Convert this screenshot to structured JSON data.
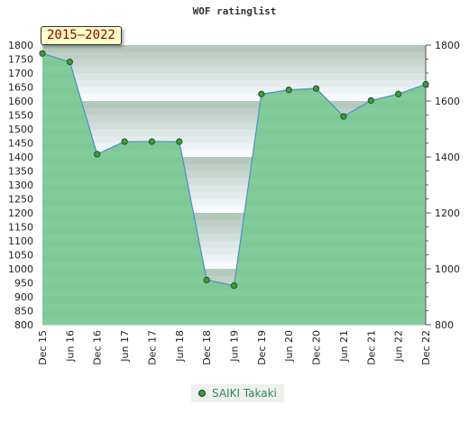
{
  "title": "WOF ratinglist",
  "range_badge": "2015–2022",
  "legend": {
    "label": "SAIKI Takaki"
  },
  "colors": {
    "line": "#4a90c8",
    "fill": "#6cc28a",
    "marker": "#3a9a3a",
    "band_dark": "#8fd3a5",
    "band_light": "#f4faf5"
  },
  "chart_data": {
    "type": "area",
    "title": "WOF ratinglist",
    "x": [
      "Dec 15",
      "Jun 16",
      "Dec 16",
      "Jun 17",
      "Dec 17",
      "Jun 18",
      "Dec 18",
      "Jun 19",
      "Dec 19",
      "Jun 20",
      "Dec 20",
      "Jun 21",
      "Dec 21",
      "Jun 22",
      "Dec 22"
    ],
    "series": [
      {
        "name": "SAIKI Takaki",
        "values": [
          1770,
          1740,
          1410,
          1455,
          1455,
          1455,
          960,
          940,
          1625,
          1640,
          1645,
          1545,
          1602,
          1625,
          1660
        ]
      }
    ],
    "ylim": [
      800,
      1800
    ],
    "yticks_left": [
      800,
      850,
      900,
      950,
      1000,
      1050,
      1100,
      1150,
      1200,
      1250,
      1300,
      1350,
      1400,
      1450,
      1500,
      1550,
      1600,
      1650,
      1700,
      1750,
      1800
    ],
    "yticks_right": [
      800,
      1000,
      1200,
      1400,
      1600,
      1800
    ],
    "grid": "horizontal bands",
    "legend_position": "bottom-center"
  }
}
